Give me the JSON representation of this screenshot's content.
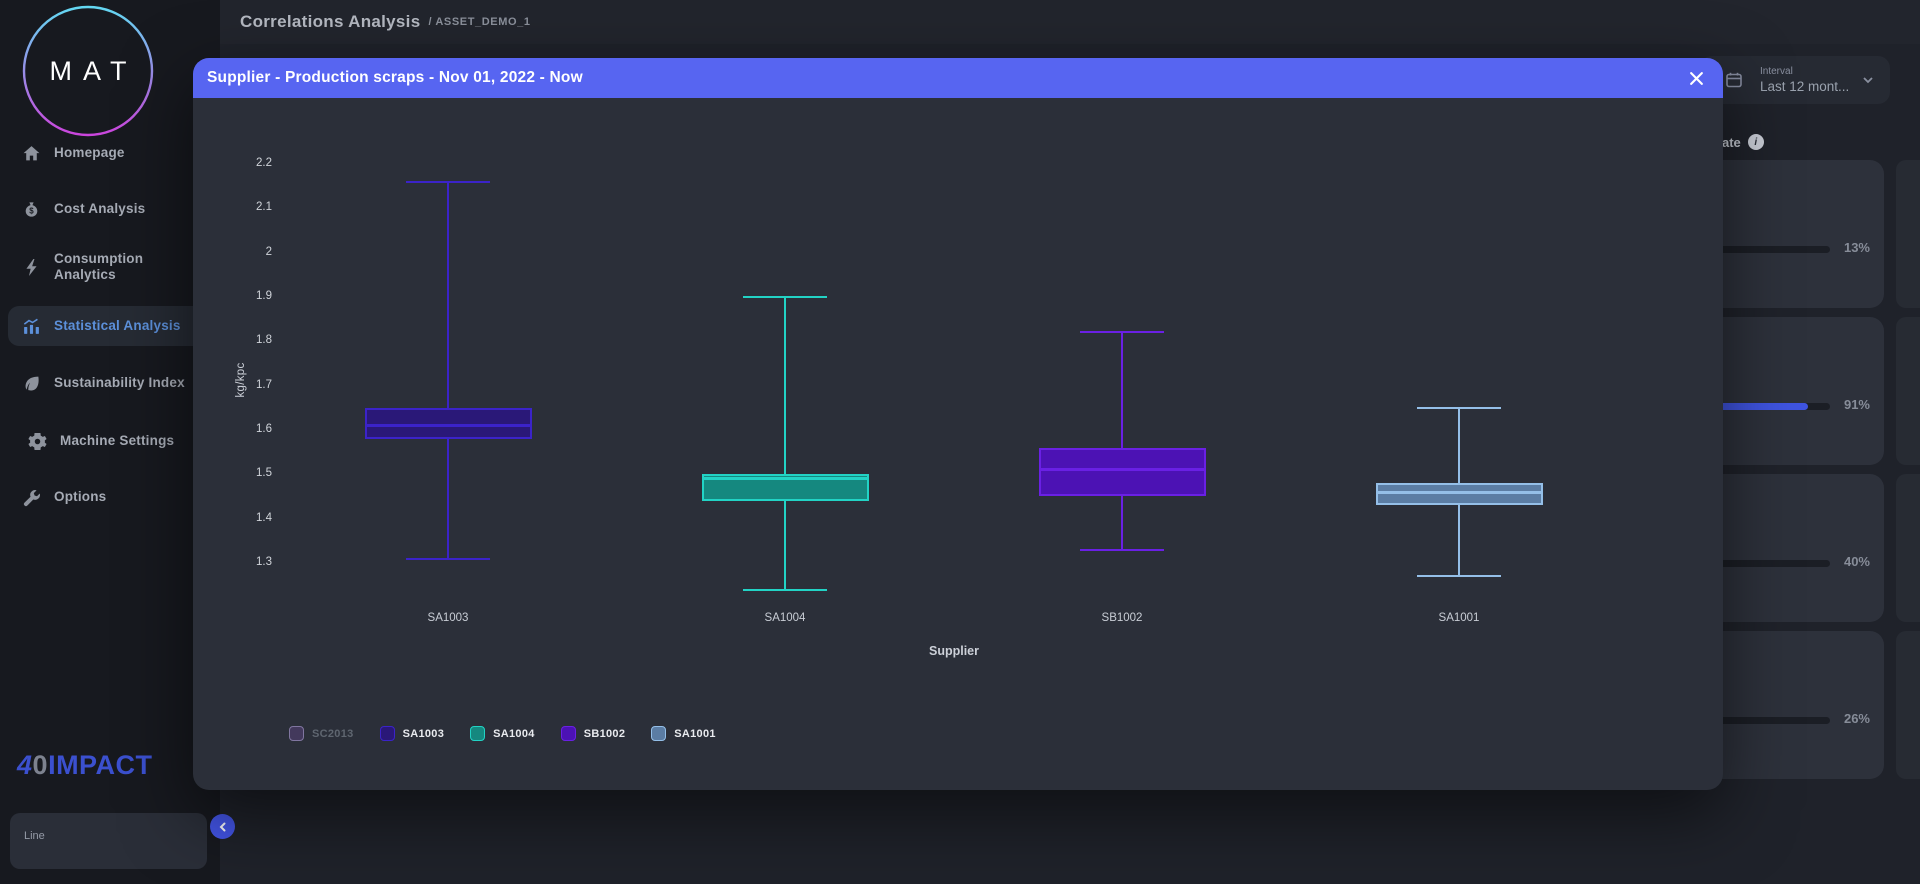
{
  "header": {
    "title": "Correlations Analysis",
    "breadcrumb": "/ ASSET_DEMO_1"
  },
  "sidebar": {
    "logo_text": "MAT",
    "items": [
      {
        "label": "Homepage",
        "icon": "home-icon",
        "active": false
      },
      {
        "label": "Cost Analysis",
        "icon": "money-bag-icon",
        "active": false
      },
      {
        "label": "Consumption Analytics",
        "icon": "bolt-icon",
        "active": false
      },
      {
        "label": "Statistical Analysis",
        "icon": "bar-chart-icon",
        "active": true
      },
      {
        "label": "Sustainability Index",
        "icon": "leaf-icon",
        "active": false
      },
      {
        "label": "Machine Settings",
        "icon": "gear-icon",
        "active": false
      },
      {
        "label": "Options",
        "icon": "wrench-icon",
        "active": false
      }
    ],
    "brand": {
      "four": "4",
      "zero": "0",
      "name": "IMPACT"
    },
    "line_selector_label": "Line",
    "collapse_icon": "chevron-left-icon"
  },
  "modal": {
    "title": "Supplier - Production scraps - Nov 01, 2022 - Now",
    "close_icon": "close-icon"
  },
  "right_panel": {
    "interval": {
      "label": "Interval",
      "value": "Last 12 mont...",
      "icon": "calendar-icon"
    },
    "section_title_partial": "ate",
    "info_icon": "info-icon",
    "cards": [
      {
        "percent": "13%"
      },
      {
        "percent": "91%"
      },
      {
        "percent": "40%"
      },
      {
        "percent": "26%"
      }
    ]
  },
  "chart_data": {
    "type": "boxplot",
    "title": "Supplier - Production scraps - Nov 01, 2022 - Now",
    "xlabel": "Supplier",
    "ylabel": "kg/kpc",
    "y_ticks": [
      2.2,
      2.1,
      2.0,
      1.9,
      1.8,
      1.7,
      1.6,
      1.5,
      1.4,
      1.3
    ],
    "ylim": [
      1.2,
      2.25
    ],
    "grid": false,
    "legend_position": "bottom-left",
    "categories": [
      "SA1003",
      "SA1004",
      "SB1002",
      "SA1001"
    ],
    "series": [
      {
        "name": "SA1003",
        "whisker_low": 1.31,
        "q1": 1.58,
        "median": 1.61,
        "q3": 1.65,
        "whisker_high": 2.16,
        "fill": "#2a1878",
        "stroke": "#3b23c9"
      },
      {
        "name": "SA1004",
        "whisker_low": 1.24,
        "q1": 1.44,
        "median": 1.49,
        "q3": 1.5,
        "whisker_high": 1.9,
        "fill": "#15887f",
        "stroke": "#22d3c5"
      },
      {
        "name": "SB1002",
        "whisker_low": 1.33,
        "q1": 1.45,
        "median": 1.51,
        "q3": 1.56,
        "whisker_high": 1.82,
        "fill": "#4c12b4",
        "stroke": "#6a20e4"
      },
      {
        "name": "SA1001",
        "whisker_low": 1.27,
        "q1": 1.43,
        "median": 1.46,
        "q3": 1.48,
        "whisker_high": 1.65,
        "fill": "#5b7da4",
        "stroke": "#94bfe8"
      }
    ],
    "legend": [
      {
        "label": "SC2013",
        "fill": "#43395c",
        "stroke": "#8076a0",
        "disabled": true
      },
      {
        "label": "SA1003",
        "fill": "#2a1878",
        "stroke": "#3b23c9",
        "disabled": false
      },
      {
        "label": "SA1004",
        "fill": "#15887f",
        "stroke": "#22d3c5",
        "disabled": false
      },
      {
        "label": "SB1002",
        "fill": "#4c12b4",
        "stroke": "#6a20e4",
        "disabled": false
      },
      {
        "label": "SA1001",
        "fill": "#5b7da4",
        "stroke": "#94bfe8",
        "disabled": false
      }
    ]
  }
}
